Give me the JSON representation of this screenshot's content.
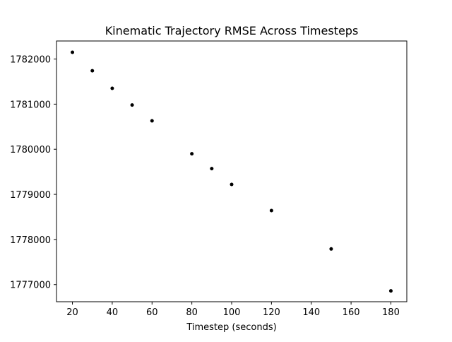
{
  "chart_data": {
    "type": "scatter",
    "title": "Kinematic Trajectory RMSE Across Timesteps",
    "xlabel": "Timestep (seconds)",
    "ylabel": "",
    "x": [
      20,
      30,
      40,
      50,
      60,
      80,
      90,
      100,
      120,
      150,
      180
    ],
    "y": [
      1782150,
      1781740,
      1781350,
      1780980,
      1780630,
      1779900,
      1779570,
      1779220,
      1778640,
      1777790,
      1776860
    ],
    "xlim": [
      12,
      188
    ],
    "ylim": [
      1776620,
      1782400
    ],
    "xticks": [
      20,
      40,
      60,
      80,
      100,
      120,
      140,
      160,
      180
    ],
    "yticks": [
      1777000,
      1778000,
      1779000,
      1780000,
      1781000,
      1782000
    ],
    "grid": false,
    "legend": "none",
    "marker_color": "#000000"
  }
}
